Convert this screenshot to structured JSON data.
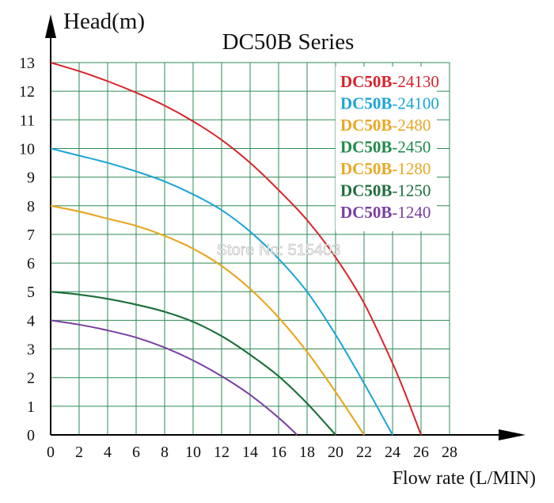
{
  "chart_data": {
    "type": "line",
    "title": "DC50B Series",
    "ylabel": "Head(m)",
    "xlabel": "Flow rate (L/MIN)",
    "xlim": [
      0,
      28
    ],
    "ylim": [
      0,
      13
    ],
    "x_ticks": [
      "0",
      "2",
      "4",
      "6",
      "8",
      "10",
      "12",
      "14",
      "16",
      "18",
      "20",
      "22",
      "24",
      "26",
      "28"
    ],
    "y_ticks": [
      "0",
      "1",
      "2",
      "3",
      "4",
      "5",
      "6",
      "7",
      "8",
      "9",
      "10",
      "11",
      "12",
      "13"
    ],
    "grid": true,
    "legend_position": "top-right",
    "watermark": "Store No: 515403",
    "series": [
      {
        "name": "24130",
        "prefix": "DC50B-",
        "color": "#d8232a",
        "points": [
          [
            0,
            13
          ],
          [
            2,
            12.7
          ],
          [
            4,
            12.35
          ],
          [
            6,
            11.95
          ],
          [
            8,
            11.5
          ],
          [
            10,
            10.95
          ],
          [
            12,
            10.3
          ],
          [
            14,
            9.5
          ],
          [
            16,
            8.55
          ],
          [
            18,
            7.5
          ],
          [
            20,
            6.2
          ],
          [
            22,
            4.6
          ],
          [
            24,
            2.5
          ],
          [
            25,
            1.3
          ],
          [
            26,
            0
          ]
        ]
      },
      {
        "name": "24100",
        "prefix": "DC50B-",
        "color": "#1aa5d6",
        "points": [
          [
            0,
            10
          ],
          [
            2,
            9.75
          ],
          [
            4,
            9.5
          ],
          [
            6,
            9.2
          ],
          [
            8,
            8.85
          ],
          [
            10,
            8.4
          ],
          [
            12,
            7.85
          ],
          [
            14,
            7.1
          ],
          [
            16,
            6.15
          ],
          [
            18,
            5.0
          ],
          [
            20,
            3.5
          ],
          [
            22,
            1.8
          ],
          [
            24,
            0
          ]
        ]
      },
      {
        "name": "2480",
        "prefix": "DC50B-",
        "color": "#e8a823",
        "points": [
          [
            0,
            8
          ],
          [
            2,
            7.8
          ],
          [
            4,
            7.55
          ],
          [
            6,
            7.3
          ],
          [
            8,
            6.95
          ],
          [
            10,
            6.5
          ],
          [
            12,
            5.9
          ],
          [
            14,
            5.1
          ],
          [
            16,
            4.1
          ],
          [
            18,
            2.9
          ],
          [
            20,
            1.5
          ],
          [
            22,
            0
          ]
        ]
      },
      {
        "name": "2450",
        "prefix": "DC50B-",
        "color": "#1e8a4a",
        "points": [
          [
            0,
            5
          ],
          [
            2,
            4.9
          ],
          [
            4,
            4.75
          ],
          [
            6,
            4.55
          ],
          [
            8,
            4.3
          ],
          [
            10,
            3.95
          ],
          [
            12,
            3.45
          ],
          [
            14,
            2.8
          ],
          [
            16,
            2.05
          ],
          [
            18,
            1.1
          ],
          [
            20,
            0
          ]
        ]
      },
      {
        "name": "1280",
        "prefix": "DC50B-",
        "color": "#e8a823",
        "points": [
          [
            0,
            8
          ],
          [
            2,
            7.8
          ],
          [
            4,
            7.55
          ],
          [
            6,
            7.3
          ],
          [
            8,
            6.95
          ],
          [
            10,
            6.5
          ],
          [
            12,
            5.9
          ],
          [
            14,
            5.1
          ],
          [
            16,
            4.1
          ],
          [
            18,
            2.9
          ],
          [
            20,
            1.5
          ],
          [
            22,
            0
          ]
        ]
      },
      {
        "name": "1250",
        "prefix": "DC50B-",
        "color": "#1e6e3c",
        "points": [
          [
            0,
            5
          ],
          [
            2,
            4.9
          ],
          [
            4,
            4.75
          ],
          [
            6,
            4.55
          ],
          [
            8,
            4.3
          ],
          [
            10,
            3.95
          ],
          [
            12,
            3.45
          ],
          [
            14,
            2.8
          ],
          [
            16,
            2.05
          ],
          [
            18,
            1.1
          ],
          [
            20,
            0
          ]
        ]
      },
      {
        "name": "1240",
        "prefix": "DC50B-",
        "color": "#7a3fa0",
        "points": [
          [
            0,
            4
          ],
          [
            2,
            3.85
          ],
          [
            4,
            3.65
          ],
          [
            6,
            3.4
          ],
          [
            8,
            3.05
          ],
          [
            10,
            2.6
          ],
          [
            12,
            2.05
          ],
          [
            14,
            1.4
          ],
          [
            16,
            0.6
          ],
          [
            17.3,
            0
          ]
        ]
      }
    ]
  }
}
